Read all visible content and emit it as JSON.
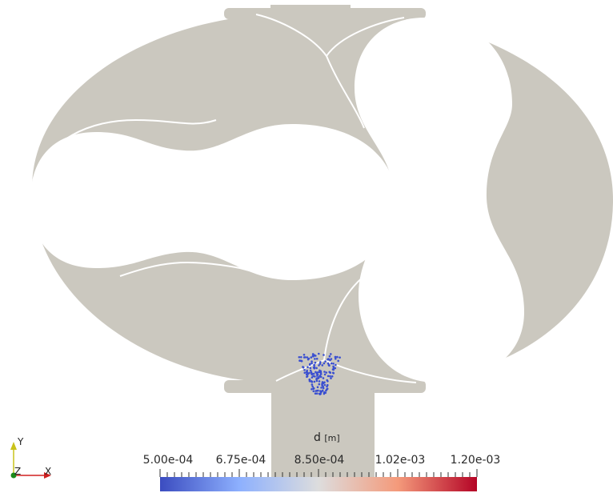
{
  "colors": {
    "geometry": "#cbc8bf",
    "gap": "#ffffff",
    "particle": "#3a4fd0",
    "cmap_low": "#3b4cc0",
    "cmap_mid": "#dddddd",
    "cmap_high": "#b40426"
  },
  "colorbar": {
    "title": "d",
    "unit": "[m]",
    "range": [
      0.0005,
      0.0012
    ],
    "tick_labels": [
      "5.00e-04",
      "6.75e-04",
      "8.50e-04",
      "1.02e-03",
      "1.20e-03"
    ]
  },
  "axes": {
    "y": "Y",
    "z": "Z",
    "x": "X"
  },
  "icons": [
    "axes-triad-icon"
  ]
}
